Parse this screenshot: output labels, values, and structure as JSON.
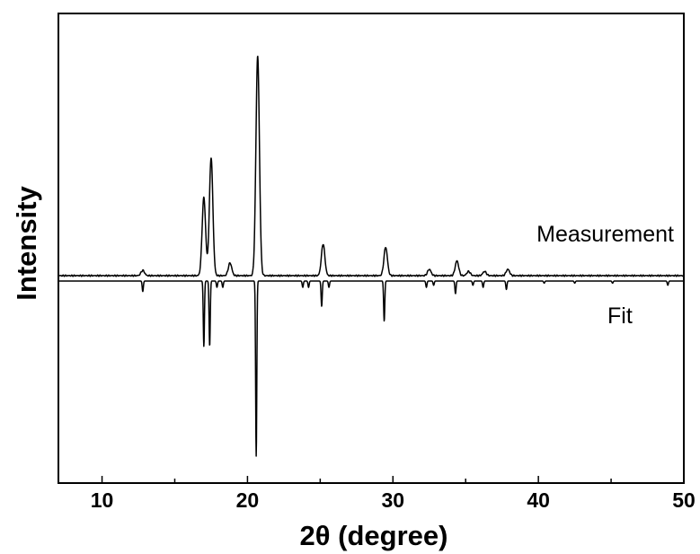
{
  "chart_data": {
    "type": "line",
    "xlabel": "2θ (degree)",
    "ylabel": "Intensity",
    "xlim": [
      7,
      50
    ],
    "x_ticks": [
      10,
      20,
      30,
      40,
      50
    ],
    "y_ticks_shown": false,
    "grid": false,
    "series": [
      {
        "name": "Measurement",
        "baseline": 0,
        "peaks": [
          {
            "x": 12.8,
            "y": 2.5
          },
          {
            "x": 17.0,
            "y": 37
          },
          {
            "x": 17.5,
            "y": 56
          },
          {
            "x": 18.8,
            "y": 6
          },
          {
            "x": 20.7,
            "y": 104
          },
          {
            "x": 25.2,
            "y": 15
          },
          {
            "x": 29.5,
            "y": 13.5
          },
          {
            "x": 32.5,
            "y": 3
          },
          {
            "x": 34.4,
            "y": 7
          },
          {
            "x": 35.2,
            "y": 2
          },
          {
            "x": 36.3,
            "y": 2
          },
          {
            "x": 37.9,
            "y": 3
          }
        ]
      },
      {
        "name": "Fit",
        "baseline": 0,
        "peaks": [
          {
            "x": 12.8,
            "y": -5
          },
          {
            "x": 17.0,
            "y": -31
          },
          {
            "x": 17.4,
            "y": -31
          },
          {
            "x": 17.9,
            "y": -3
          },
          {
            "x": 18.3,
            "y": -3
          },
          {
            "x": 20.6,
            "y": -83
          },
          {
            "x": 23.8,
            "y": -3
          },
          {
            "x": 24.2,
            "y": -3
          },
          {
            "x": 25.1,
            "y": -12
          },
          {
            "x": 25.6,
            "y": -3
          },
          {
            "x": 29.4,
            "y": -19
          },
          {
            "x": 32.3,
            "y": -3
          },
          {
            "x": 32.8,
            "y": -2
          },
          {
            "x": 34.3,
            "y": -6
          },
          {
            "x": 35.5,
            "y": -2
          },
          {
            "x": 36.2,
            "y": -3
          },
          {
            "x": 37.8,
            "y": -4
          },
          {
            "x": 40.4,
            "y": -1
          },
          {
            "x": 42.5,
            "y": -1
          },
          {
            "x": 45.1,
            "y": -1
          },
          {
            "x": 48.9,
            "y": -2
          }
        ]
      }
    ]
  }
}
